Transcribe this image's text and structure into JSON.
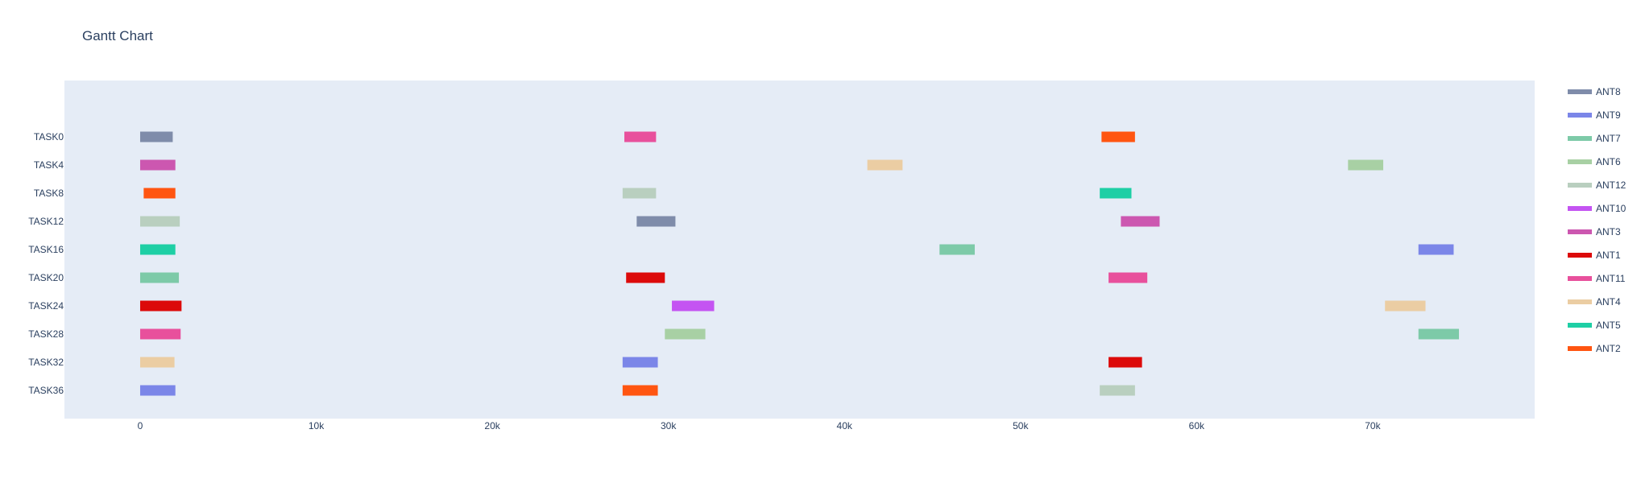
{
  "chart_data": {
    "type": "gantt",
    "title": "Gantt Chart",
    "xlabel": "",
    "ylabel": "",
    "xlim": [
      -4300,
      79200
    ],
    "x_ticks": [
      0,
      10000,
      20000,
      30000,
      40000,
      50000,
      60000,
      70000
    ],
    "x_tick_labels": [
      "0",
      "10k",
      "20k",
      "30k",
      "40k",
      "50k",
      "60k",
      "70k"
    ],
    "y_categories": [
      "TASK0",
      "TASK4",
      "TASK8",
      "TASK12",
      "TASK16",
      "TASK20",
      "TASK24",
      "TASK28",
      "TASK32",
      "TASK36"
    ],
    "plot_background": "#e5ecf6",
    "grid": false,
    "legend_position": "right",
    "series": [
      {
        "name": "ANT8",
        "color": "#7f8caa",
        "bars": [
          {
            "task": "TASK0",
            "start": 0,
            "end": 1850
          },
          {
            "task": "TASK12",
            "start": 28200,
            "end": 30400
          }
        ]
      },
      {
        "name": "ANT9",
        "color": "#7b86e8",
        "bars": [
          {
            "task": "TASK16",
            "start": 72600,
            "end": 74600
          },
          {
            "task": "TASK32",
            "start": 27400,
            "end": 29400
          },
          {
            "task": "TASK36",
            "start": 0,
            "end": 2000
          }
        ]
      },
      {
        "name": "ANT7",
        "color": "#7dcaa8",
        "bars": [
          {
            "task": "TASK16",
            "start": 45400,
            "end": 47400
          },
          {
            "task": "TASK20",
            "start": 0,
            "end": 2200
          },
          {
            "task": "TASK28",
            "start": 72600,
            "end": 74900
          }
        ]
      },
      {
        "name": "ANT6",
        "color": "#a8d0a4",
        "bars": [
          {
            "task": "TASK4",
            "start": 68600,
            "end": 70600
          },
          {
            "task": "TASK28",
            "start": 29800,
            "end": 32100
          }
        ]
      },
      {
        "name": "ANT12",
        "color": "#b9cfbf",
        "bars": [
          {
            "task": "TASK8",
            "start": 27400,
            "end": 29300
          },
          {
            "task": "TASK12",
            "start": 0,
            "end": 2250
          },
          {
            "task": "TASK36",
            "start": 54500,
            "end": 56500
          }
        ]
      },
      {
        "name": "ANT10",
        "color": "#c454f2",
        "bars": [
          {
            "task": "TASK24",
            "start": 30200,
            "end": 32600
          }
        ]
      },
      {
        "name": "ANT3",
        "color": "#cc57b0",
        "bars": [
          {
            "task": "TASK4",
            "start": 0,
            "end": 2000
          },
          {
            "task": "TASK12",
            "start": 55700,
            "end": 57900
          }
        ]
      },
      {
        "name": "ANT1",
        "color": "#dc0a0a",
        "bars": [
          {
            "task": "TASK20",
            "start": 27600,
            "end": 29800
          },
          {
            "task": "TASK24",
            "start": 0,
            "end": 2350
          },
          {
            "task": "TASK32",
            "start": 55000,
            "end": 56900
          }
        ]
      },
      {
        "name": "ANT11",
        "color": "#e8509c",
        "bars": [
          {
            "task": "TASK0",
            "start": 27500,
            "end": 29300
          },
          {
            "task": "TASK20",
            "start": 55000,
            "end": 57200
          },
          {
            "task": "TASK28",
            "start": 0,
            "end": 2300
          }
        ]
      },
      {
        "name": "ANT4",
        "color": "#ebcda3",
        "bars": [
          {
            "task": "TASK4",
            "start": 41300,
            "end": 43300
          },
          {
            "task": "TASK24",
            "start": 70700,
            "end": 73000
          },
          {
            "task": "TASK32",
            "start": 0,
            "end": 1950
          }
        ]
      },
      {
        "name": "ANT5",
        "color": "#1ecfa5",
        "bars": [
          {
            "task": "TASK8",
            "start": 54500,
            "end": 56300
          },
          {
            "task": "TASK16",
            "start": 0,
            "end": 2000
          }
        ]
      },
      {
        "name": "ANT2",
        "color": "#ff5511",
        "bars": [
          {
            "task": "TASK0",
            "start": 54600,
            "end": 56500
          },
          {
            "task": "TASK8",
            "start": 200,
            "end": 2000
          },
          {
            "task": "TASK36",
            "start": 27400,
            "end": 29400
          }
        ]
      }
    ]
  }
}
